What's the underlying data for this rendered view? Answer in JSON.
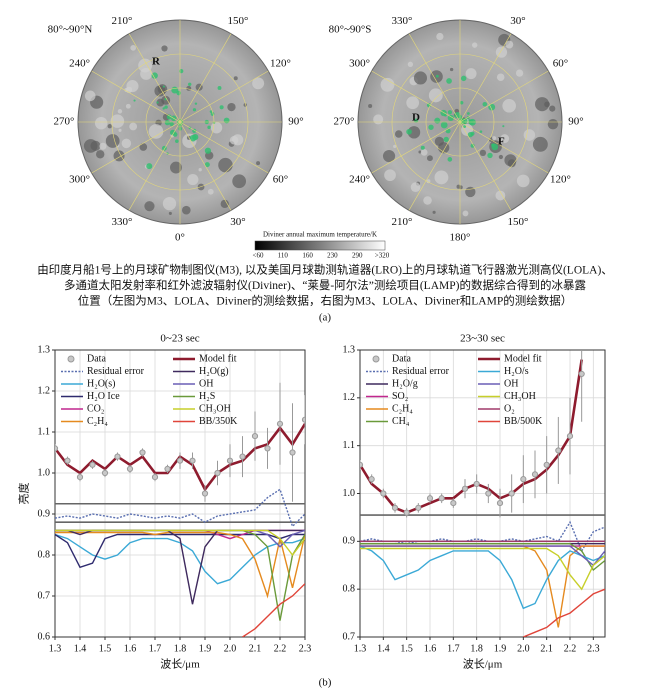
{
  "figure_a": {
    "maps": [
      {
        "region": "80°~90°N",
        "zero_at": "bottom",
        "angle_labels": [
          {
            "value": 210,
            "label": "210°"
          },
          {
            "value": 150,
            "label": "150°"
          },
          {
            "value": 240,
            "label": "240°"
          },
          {
            "value": 120,
            "label": "120°"
          },
          {
            "value": 270,
            "label": "270°"
          },
          {
            "value": 90,
            "label": "90°"
          },
          {
            "value": 300,
            "label": "300°"
          },
          {
            "value": 60,
            "label": "60°"
          },
          {
            "value": 330,
            "label": "330°"
          },
          {
            "value": 30,
            "label": "30°"
          },
          {
            "value": 0,
            "label": "0°"
          }
        ],
        "markers": [
          "R"
        ]
      },
      {
        "region": "80°~90°S",
        "zero_at": "top",
        "angle_labels": [
          {
            "value": 330,
            "label": "330°"
          },
          {
            "value": 30,
            "label": "30°"
          },
          {
            "value": 300,
            "label": "300°"
          },
          {
            "value": 60,
            "label": "60°"
          },
          {
            "value": 270,
            "label": "270°"
          },
          {
            "value": 90,
            "label": "90°"
          },
          {
            "value": 240,
            "label": "240°"
          },
          {
            "value": 120,
            "label": "120°"
          },
          {
            "value": 210,
            "label": "210°"
          },
          {
            "value": 150,
            "label": "150°"
          },
          {
            "value": 180,
            "label": "180°"
          }
        ],
        "markers": [
          "D",
          "F"
        ]
      }
    ],
    "colorbar": {
      "title": "Diviner annual maximum temperature/K",
      "labels": [
        "<60",
        "110",
        "160",
        "230",
        "290",
        ">320"
      ]
    },
    "caption": [
      "由印度月船1号上的月球矿物制图仪(M3), 以及美国月球勘测轨道器(LRO)上的月球轨道飞行器激光测高仪(LOLA)、",
      "多通道太阳发射率和红外滤波辐射仪(Diviner)、“莱曼-阿尔法”测绘项目(LAMP)的数据综合得到的冰暴露",
      "位置（左图为M3、LOLA、Diviner的测绘数据，右图为M3、LOLA、Diviner和LAMP的测绘数据）"
    ],
    "label": "(a)"
  },
  "figure_b_label": "(b)",
  "chart_data": [
    {
      "type": "line",
      "title": "0~23 sec",
      "x_label": "波长/μm",
      "y_label": "亮度",
      "grid": true,
      "xlim": [
        1.3,
        2.3
      ],
      "ylim": [
        0.6,
        1.3
      ],
      "xticks": [
        1.3,
        1.4,
        1.5,
        1.6,
        1.7,
        1.8,
        1.9,
        {
          "value": 2,
          "label": "2.0"
        },
        2.1,
        2.2,
        2.3
      ],
      "yticks": [
        0.6,
        0.7,
        0.8,
        0.9,
        {
          "value": 1,
          "label": "1.0"
        },
        1.1,
        1.2,
        1.3
      ],
      "reference_lines": [
        0.925,
        0.88
      ],
      "x": [
        1.3,
        1.35,
        1.4,
        1.45,
        1.5,
        1.55,
        1.6,
        1.65,
        1.7,
        1.75,
        1.8,
        1.85,
        1.9,
        1.95,
        2.0,
        2.05,
        2.1,
        2.15,
        2.2,
        2.25,
        2.3
      ],
      "series": [
        {
          "name": "Data",
          "color": "#9a9a9a",
          "style": "points",
          "values": [
            1.06,
            1.03,
            0.99,
            1.02,
            1.0,
            1.04,
            1.01,
            1.05,
            0.99,
            1.01,
            1.03,
            1.03,
            0.95,
            1.0,
            1.03,
            1.04,
            1.09,
            1.06,
            1.12,
            1.05,
            1.13
          ],
          "errors": [
            0.01,
            0.01,
            0.01,
            0.01,
            0.01,
            0.01,
            0.01,
            0.01,
            0.01,
            0.01,
            0.02,
            0.02,
            0.02,
            0.03,
            0.04,
            0.05,
            0.06,
            0.05,
            0.1,
            0.12,
            0.06
          ]
        },
        {
          "name": "Residual error",
          "color": "#5a6fb0",
          "style": "dotted",
          "values": [
            0.89,
            0.895,
            0.89,
            0.9,
            0.895,
            0.89,
            0.9,
            0.895,
            0.89,
            0.895,
            0.89,
            0.9,
            0.88,
            0.895,
            0.9,
            0.905,
            0.91,
            0.94,
            0.96,
            0.87,
            0.9
          ]
        },
        {
          "name": "H₂O(s)",
          "color": "#3ba9d6",
          "values": [
            0.85,
            0.84,
            0.82,
            0.8,
            0.79,
            0.8,
            0.83,
            0.84,
            0.84,
            0.84,
            0.83,
            0.81,
            0.76,
            0.73,
            0.74,
            0.77,
            0.8,
            0.82,
            0.83,
            0.83,
            0.84
          ]
        },
        {
          "name": "H₂O Ice",
          "color": "#2e2a6e",
          "values": [
            0.85,
            0.83,
            0.77,
            0.78,
            0.84,
            0.85,
            0.85,
            0.85,
            0.85,
            0.85,
            0.85,
            0.85,
            0.85,
            0.85,
            0.85,
            0.85,
            0.85,
            0.85,
            0.84,
            0.85,
            0.85
          ]
        },
        {
          "name": "CO₂",
          "color": "#c1278e",
          "values": [
            0.86,
            0.86,
            0.86,
            0.86,
            0.86,
            0.86,
            0.86,
            0.86,
            0.86,
            0.86,
            0.86,
            0.86,
            0.86,
            0.85,
            0.84,
            0.85,
            0.86,
            0.86,
            0.86,
            0.86,
            0.86
          ]
        },
        {
          "name": "C₂H₄",
          "color": "#e58a1f",
          "values": [
            0.855,
            0.855,
            0.855,
            0.855,
            0.855,
            0.855,
            0.855,
            0.855,
            0.85,
            0.855,
            0.855,
            0.855,
            0.855,
            0.855,
            0.85,
            0.84,
            0.79,
            0.7,
            0.84,
            0.72,
            0.85
          ]
        },
        {
          "name": "Model fit",
          "color": "#8e1b2e",
          "style": "thick",
          "values": [
            1.06,
            1.02,
            1.0,
            1.03,
            1.01,
            1.04,
            1.02,
            1.04,
            1.0,
            1.0,
            1.04,
            1.02,
            0.96,
            1.0,
            1.02,
            1.03,
            1.06,
            1.07,
            1.11,
            1.07,
            1.12
          ]
        },
        {
          "name": "H₂O(g)",
          "color": "#3f2a5e",
          "values": [
            0.86,
            0.86,
            0.85,
            0.86,
            0.86,
            0.86,
            0.86,
            0.86,
            0.86,
            0.86,
            0.84,
            0.68,
            0.82,
            0.86,
            0.86,
            0.86,
            0.86,
            0.86,
            0.86,
            0.86,
            0.86
          ]
        },
        {
          "name": "OH",
          "color": "#6a5fb5",
          "values": [
            0.86,
            0.86,
            0.86,
            0.86,
            0.86,
            0.86,
            0.86,
            0.86,
            0.86,
            0.86,
            0.86,
            0.86,
            0.86,
            0.86,
            0.86,
            0.86,
            0.86,
            0.85,
            0.82,
            0.85,
            0.86
          ]
        },
        {
          "name": "H₂S",
          "color": "#6a9a3a",
          "values": [
            0.86,
            0.86,
            0.86,
            0.86,
            0.86,
            0.86,
            0.86,
            0.86,
            0.86,
            0.86,
            0.86,
            0.86,
            0.86,
            0.86,
            0.86,
            0.86,
            0.85,
            0.82,
            0.64,
            0.8,
            0.85
          ]
        },
        {
          "name": "CH₃OH",
          "color": "#c7cf2a",
          "values": [
            0.86,
            0.86,
            0.86,
            0.86,
            0.86,
            0.86,
            0.86,
            0.86,
            0.86,
            0.86,
            0.86,
            0.86,
            0.86,
            0.86,
            0.86,
            0.86,
            0.86,
            0.86,
            0.84,
            0.8,
            0.84
          ]
        },
        {
          "name": "BB/350K",
          "color": "#e0453a",
          "values": [
            null,
            null,
            null,
            null,
            null,
            null,
            null,
            null,
            null,
            null,
            null,
            null,
            null,
            null,
            null,
            0.6,
            0.62,
            0.65,
            0.68,
            0.7,
            0.73
          ]
        }
      ]
    },
    {
      "type": "line",
      "title": "23~30 sec",
      "x_label": "波长/μm",
      "grid": true,
      "xlim": [
        1.3,
        2.35
      ],
      "ylim": [
        0.7,
        1.3
      ],
      "xticks": [
        1.3,
        1.4,
        1.5,
        1.6,
        1.7,
        1.8,
        1.9,
        {
          "value": 2,
          "label": "2.0"
        },
        2.1,
        2.2,
        2.3
      ],
      "yticks": [
        0.7,
        0.8,
        0.9,
        {
          "value": 1,
          "label": "1.0"
        },
        1.1,
        1.2,
        1.3
      ],
      "reference_lines": [
        0.955,
        0.9
      ],
      "x": [
        1.3,
        1.35,
        1.4,
        1.45,
        1.5,
        1.55,
        1.6,
        1.65,
        1.7,
        1.75,
        1.8,
        1.85,
        1.9,
        1.95,
        2.0,
        2.05,
        2.1,
        2.15,
        2.2,
        2.25,
        2.3,
        2.35
      ],
      "series": [
        {
          "name": "Data",
          "color": "#9a9a9a",
          "style": "points",
          "values": [
            1.06,
            1.03,
            1.0,
            0.97,
            0.96,
            0.97,
            0.99,
            0.99,
            0.98,
            1.01,
            1.02,
            1.0,
            0.98,
            1.0,
            1.03,
            1.04,
            1.06,
            1.09,
            1.12,
            1.25,
            null,
            null
          ],
          "errors": [
            0.01,
            0.01,
            0.01,
            0.01,
            0.01,
            0.01,
            0.01,
            0.01,
            0.01,
            0.02,
            0.02,
            0.02,
            0.03,
            0.04,
            0.05,
            0.05,
            0.06,
            0.07,
            0.08,
            0.1,
            null,
            null
          ]
        },
        {
          "name": "Residual error",
          "color": "#5a6fb0",
          "style": "dotted",
          "values": [
            0.9,
            0.905,
            0.9,
            0.9,
            0.895,
            0.9,
            0.9,
            0.905,
            0.9,
            0.9,
            0.905,
            0.9,
            0.9,
            0.905,
            0.9,
            0.905,
            0.91,
            0.9,
            0.94,
            0.88,
            0.92,
            0.93
          ]
        },
        {
          "name": "H₂O/g",
          "color": "#3f2a5e",
          "values": [
            0.895,
            0.895,
            0.895,
            0.895,
            0.895,
            0.895,
            0.895,
            0.895,
            0.895,
            0.895,
            0.895,
            0.895,
            0.895,
            0.895,
            0.895,
            0.895,
            0.895,
            0.895,
            0.895,
            0.895,
            0.895,
            0.895
          ]
        },
        {
          "name": "SO₂",
          "color": "#c1278e",
          "values": [
            0.89,
            0.89,
            0.89,
            0.89,
            0.89,
            0.89,
            0.89,
            0.89,
            0.89,
            0.89,
            0.89,
            0.89,
            0.89,
            0.89,
            0.89,
            0.89,
            0.89,
            0.89,
            0.89,
            0.89,
            0.89,
            0.89
          ]
        },
        {
          "name": "C₂H₄",
          "color": "#e58a1f",
          "values": [
            0.89,
            0.89,
            0.89,
            0.89,
            0.89,
            0.89,
            0.89,
            0.89,
            0.89,
            0.89,
            0.89,
            0.89,
            0.89,
            0.89,
            0.89,
            0.88,
            0.84,
            0.72,
            0.87,
            0.89,
            0.89,
            0.89
          ]
        },
        {
          "name": "CH₄",
          "color": "#6a9a3a",
          "values": [
            0.895,
            0.895,
            0.895,
            0.895,
            0.895,
            0.895,
            0.895,
            0.895,
            0.895,
            0.895,
            0.895,
            0.895,
            0.895,
            0.895,
            0.895,
            0.895,
            0.895,
            0.895,
            0.895,
            0.88,
            0.84,
            0.86
          ]
        },
        {
          "name": "Model fit",
          "color": "#8e1b2e",
          "style": "thick",
          "values": [
            1.06,
            1.02,
            1.0,
            0.97,
            0.96,
            0.97,
            0.98,
            0.99,
            0.99,
            1.01,
            1.02,
            1.01,
            0.99,
            1.0,
            1.02,
            1.03,
            1.05,
            1.08,
            1.12,
            1.28,
            null,
            null
          ]
        },
        {
          "name": "H₂O/s",
          "color": "#3ba9d6",
          "values": [
            0.89,
            0.88,
            0.86,
            0.82,
            0.83,
            0.84,
            0.86,
            0.87,
            0.88,
            0.88,
            0.88,
            0.88,
            0.86,
            0.82,
            0.76,
            0.77,
            0.82,
            0.86,
            0.88,
            0.87,
            0.86,
            0.87
          ]
        },
        {
          "name": "OH",
          "color": "#6a5fb5",
          "values": [
            0.89,
            0.89,
            0.89,
            0.89,
            0.89,
            0.89,
            0.89,
            0.89,
            0.89,
            0.89,
            0.89,
            0.89,
            0.89,
            0.89,
            0.89,
            0.89,
            0.89,
            0.89,
            0.89,
            0.87,
            0.85,
            0.88
          ]
        },
        {
          "name": "CH₃OH",
          "color": "#c7cf2a",
          "values": [
            0.885,
            0.885,
            0.885,
            0.885,
            0.885,
            0.885,
            0.885,
            0.885,
            0.885,
            0.885,
            0.885,
            0.885,
            0.885,
            0.885,
            0.885,
            0.885,
            0.885,
            0.87,
            0.83,
            0.8,
            0.85,
            0.87
          ]
        },
        {
          "name": "O₂",
          "color": "#a03a6a",
          "values": [
            0.9,
            0.9,
            0.9,
            0.9,
            0.9,
            0.9,
            0.9,
            0.9,
            0.9,
            0.9,
            0.9,
            0.9,
            0.9,
            0.9,
            0.9,
            0.9,
            0.9,
            0.9,
            0.9,
            0.9,
            0.9,
            0.9
          ]
        },
        {
          "name": "BB/500K",
          "color": "#e0453a",
          "values": [
            null,
            null,
            null,
            null,
            null,
            null,
            null,
            null,
            null,
            null,
            null,
            null,
            null,
            null,
            0.7,
            0.71,
            0.72,
            0.74,
            0.75,
            0.77,
            0.79,
            0.8
          ]
        }
      ]
    }
  ]
}
